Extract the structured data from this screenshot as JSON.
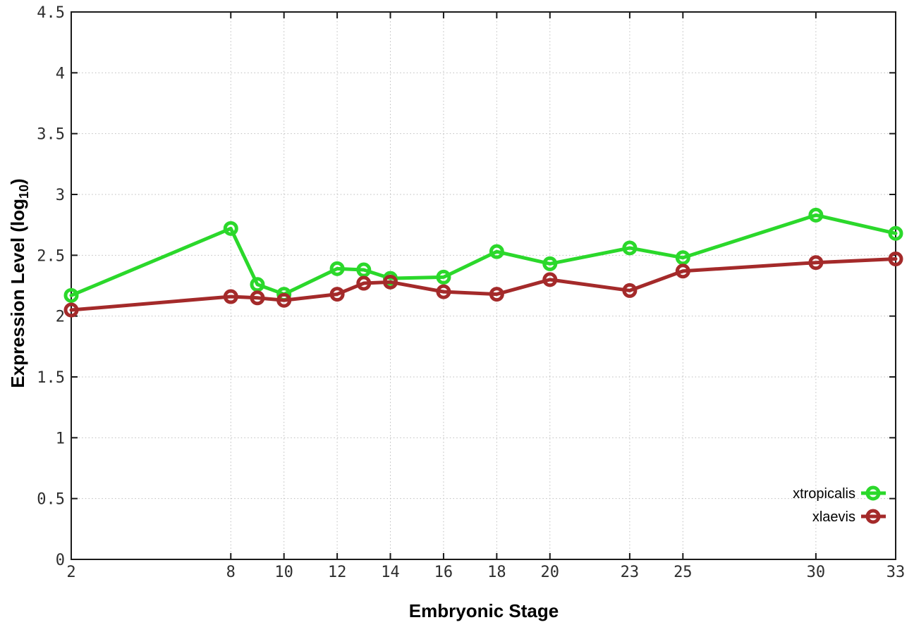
{
  "chart_data": {
    "type": "line",
    "title": "",
    "xlabel": "Embryonic Stage",
    "ylabel": "Expression Level (log10)",
    "ylabel_parts": {
      "pre": "Expression Level (log",
      "sub": "10",
      "post": ")"
    },
    "xlim": [
      2,
      33
    ],
    "ylim": [
      0,
      4.5
    ],
    "xticks": [
      2,
      8,
      10,
      12,
      14,
      16,
      18,
      20,
      23,
      25,
      30,
      33
    ],
    "xtick_labels": [
      "2",
      "8",
      "10",
      "12",
      "14",
      "16",
      "18",
      "20",
      "23",
      "25",
      "30",
      "33"
    ],
    "yticks": [
      0,
      0.5,
      1,
      1.5,
      2,
      2.5,
      3,
      3.5,
      4,
      4.5
    ],
    "ytick_labels": [
      "0",
      "0.5",
      "1",
      "1.5",
      "2",
      "2.5",
      "3",
      "3.5",
      "4",
      "4.5"
    ],
    "grid": true,
    "legend_position": "bottom-right",
    "x": [
      2,
      8,
      9,
      10,
      12,
      13,
      14,
      16,
      18,
      20,
      23,
      25,
      30,
      33
    ],
    "series": [
      {
        "name": "xtropicalis",
        "color": "#2bd82b",
        "marker": "open-circle",
        "values": [
          2.17,
          2.72,
          2.26,
          2.18,
          2.39,
          2.38,
          2.31,
          2.32,
          2.53,
          2.43,
          2.56,
          2.48,
          2.83,
          2.68
        ]
      },
      {
        "name": "xlaevis",
        "color": "#a42a2a",
        "marker": "open-circle",
        "values": [
          2.05,
          2.16,
          2.15,
          2.13,
          2.18,
          2.27,
          2.28,
          2.2,
          2.18,
          2.3,
          2.21,
          2.37,
          2.44,
          2.47
        ]
      }
    ],
    "axis_color": "#1a1a1a",
    "grid_color": "#bdbdbd",
    "background": "#ffffff"
  }
}
